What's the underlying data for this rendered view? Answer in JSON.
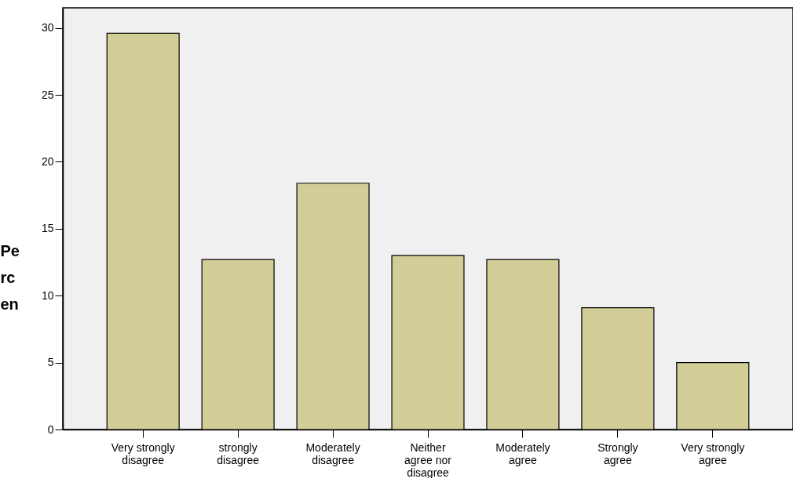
{
  "chart_data": {
    "type": "bar",
    "ylabel": "Pe\nrc\nen",
    "categories": [
      "Very strongly\ndisagree",
      "strongly\ndisagree",
      "Moderately\ndisagree",
      "Neither\nagree nor\ndisagree",
      "Moderately\nagree",
      "Strongly\nagree",
      "Very strongly\nagree"
    ],
    "values": [
      29.6,
      12.7,
      18.4,
      13.0,
      12.7,
      9.1,
      5.0
    ],
    "color": "#d3ce98",
    "ylim": [
      0,
      31.5
    ],
    "yticks": [
      0,
      5,
      10,
      15,
      20,
      25,
      30
    ],
    "grid": false
  }
}
